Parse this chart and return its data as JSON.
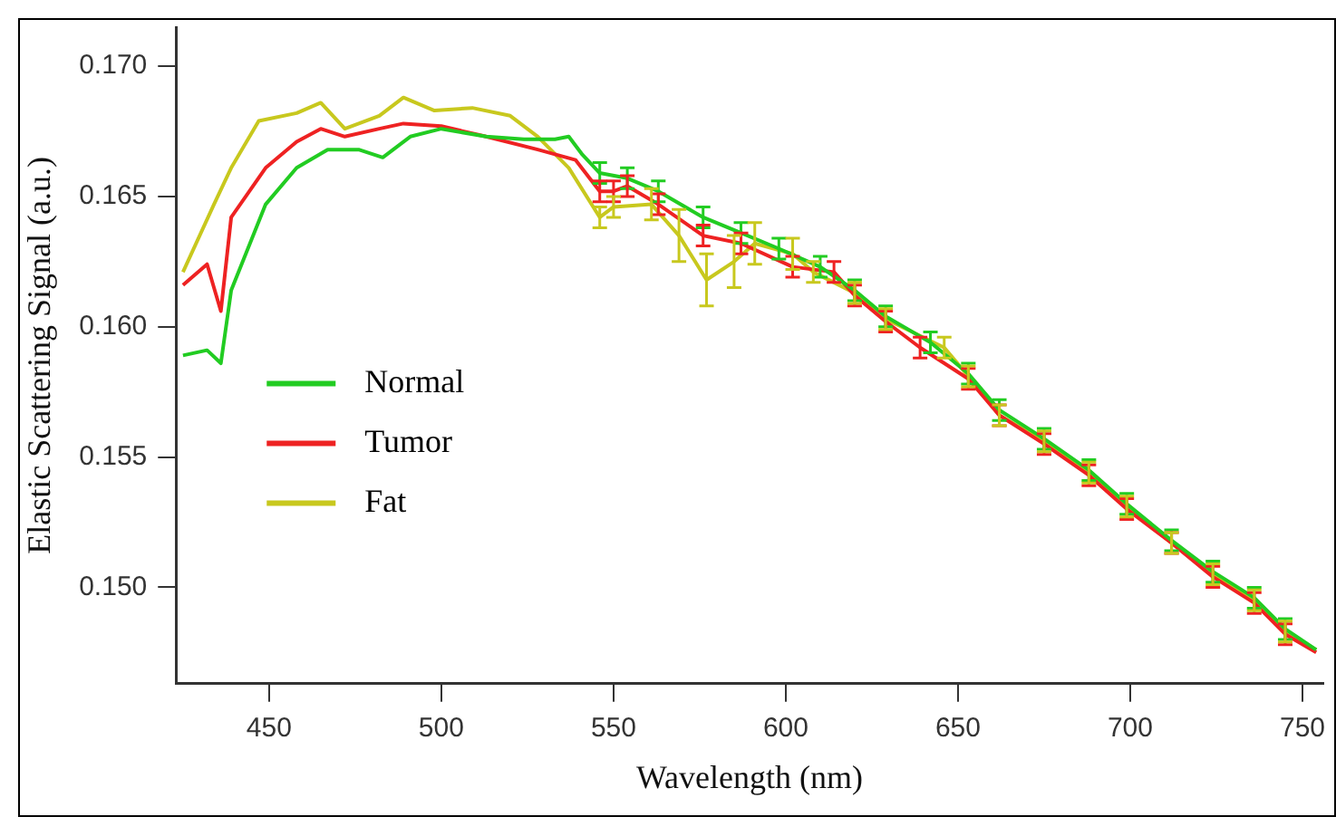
{
  "chart_data": {
    "type": "line",
    "xlabel": "Wavelength (nm)",
    "ylabel": "Elastic Scattering Signal (a.u.)",
    "xlim": [
      423,
      756
    ],
    "xticks": [
      450,
      500,
      550,
      600,
      650,
      700,
      750
    ],
    "ylim": [
      0.1463,
      0.1715
    ],
    "yticks": [
      {
        "value": 0.15,
        "label": "0.150"
      },
      {
        "value": 0.155,
        "label": "0.155"
      },
      {
        "value": 0.16,
        "label": "0.160"
      },
      {
        "value": 0.165,
        "label": "0.165"
      },
      {
        "value": 0.17,
        "label": "0.170"
      }
    ],
    "legend": "left",
    "grid": false,
    "series": [
      {
        "name": "Normal",
        "color": "#22cc22",
        "x": [
          425,
          432,
          436,
          439,
          449,
          458,
          467,
          476,
          483,
          491,
          500,
          513,
          524,
          533,
          537,
          541,
          546,
          554,
          563,
          576,
          587,
          598,
          610,
          620,
          629,
          642,
          653,
          662,
          675,
          688,
          699,
          712,
          724,
          736,
          745,
          754
        ],
        "values": [
          0.1589,
          0.1591,
          0.1586,
          0.1614,
          0.1647,
          0.1661,
          0.1668,
          0.1668,
          0.1665,
          0.1673,
          0.1676,
          0.1673,
          0.1672,
          0.1672,
          0.1673,
          0.1666,
          0.1659,
          0.1657,
          0.1652,
          0.1642,
          0.1636,
          0.163,
          0.1623,
          0.1614,
          0.1604,
          0.1594,
          0.1582,
          0.1568,
          0.1557,
          0.1545,
          0.1532,
          0.1518,
          0.1506,
          0.1496,
          0.1484,
          0.1476
        ],
        "errors": [
          null,
          null,
          null,
          null,
          null,
          null,
          null,
          null,
          null,
          null,
          null,
          null,
          null,
          null,
          null,
          null,
          0.0004,
          0.0004,
          0.0004,
          0.0004,
          0.0004,
          0.0004,
          0.0004,
          0.0004,
          0.0004,
          0.0004,
          0.0004,
          0.0004,
          0.0004,
          0.0004,
          0.0004,
          0.0004,
          0.0004,
          0.0004,
          0.0004,
          null
        ]
      },
      {
        "name": "Tumor",
        "color": "#ee2222",
        "x": [
          425,
          432,
          436,
          439,
          449,
          458,
          465,
          472,
          482,
          489,
          500,
          513,
          528,
          539,
          546,
          550,
          554,
          563,
          576,
          587,
          602,
          614,
          620,
          629,
          639,
          653,
          662,
          675,
          688,
          699,
          712,
          724,
          736,
          745,
          754
        ],
        "values": [
          0.1616,
          0.1624,
          0.1606,
          0.1642,
          0.1661,
          0.1671,
          0.1676,
          0.1673,
          0.1676,
          0.1678,
          0.1677,
          0.1673,
          0.1668,
          0.1664,
          0.1652,
          0.1652,
          0.1654,
          0.1647,
          0.1635,
          0.1632,
          0.1623,
          0.1621,
          0.1612,
          0.1602,
          0.1592,
          0.158,
          0.1566,
          0.1555,
          0.1543,
          0.153,
          0.1517,
          0.1504,
          0.1494,
          0.1482,
          0.1475
        ],
        "errors": [
          null,
          null,
          null,
          null,
          null,
          null,
          null,
          null,
          null,
          null,
          null,
          null,
          null,
          null,
          0.0004,
          0.0004,
          0.0004,
          0.0004,
          0.0004,
          0.0004,
          0.0004,
          0.0004,
          0.0004,
          0.0004,
          0.0004,
          0.0004,
          0.0004,
          0.0004,
          0.0004,
          0.0004,
          0.0004,
          0.0004,
          0.0004,
          0.0004,
          null
        ]
      },
      {
        "name": "Fat",
        "color": "#c8c81e",
        "x": [
          425,
          434,
          439,
          447,
          458,
          465,
          472,
          482,
          489,
          498,
          509,
          520,
          528,
          537,
          546,
          550,
          561,
          569,
          577,
          585,
          591,
          602,
          608,
          620,
          629,
          646,
          653,
          662,
          675,
          688,
          699,
          712,
          724,
          736,
          745,
          754
        ],
        "values": [
          0.1621,
          0.1647,
          0.1661,
          0.1679,
          0.1682,
          0.1686,
          0.1676,
          0.1681,
          0.1688,
          0.1683,
          0.1684,
          0.1681,
          0.1673,
          0.1661,
          0.1642,
          0.1646,
          0.1647,
          0.1635,
          0.1618,
          0.1625,
          0.1632,
          0.1628,
          0.1621,
          0.1613,
          0.1603,
          0.1592,
          0.1581,
          0.1566,
          0.1556,
          0.1544,
          0.1531,
          0.1517,
          0.1505,
          0.1495,
          0.1483,
          0.1476
        ],
        "errors": [
          null,
          null,
          null,
          null,
          null,
          null,
          null,
          null,
          null,
          null,
          null,
          null,
          null,
          null,
          0.0004,
          0.0004,
          0.0006,
          0.001,
          0.001,
          0.001,
          0.0008,
          0.0006,
          0.0004,
          0.0004,
          0.0004,
          0.0004,
          0.0004,
          0.0004,
          0.0004,
          0.0004,
          0.0004,
          0.0004,
          0.0004,
          0.0004,
          0.0004,
          null
        ]
      }
    ]
  }
}
